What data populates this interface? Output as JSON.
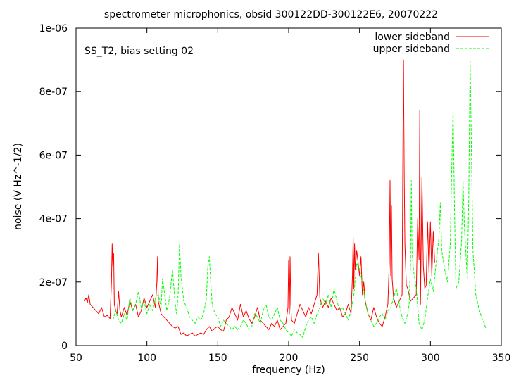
{
  "chart_data": {
    "type": "line",
    "title": "spectrometer microphonics, obsid 300122DD-300122E6, 20070222",
    "xlabel": "frequency (Hz)",
    "ylabel": "noise (V Hz^-1/2)",
    "annotation": "SS_T2, bias setting 02",
    "xlim": [
      50,
      350
    ],
    "ylim": [
      0,
      1e-06
    ],
    "x_ticks": [
      50,
      100,
      150,
      200,
      250,
      300,
      350
    ],
    "x_tick_labels": [
      "50",
      "100",
      "150",
      "200",
      "250",
      "300",
      "350"
    ],
    "y_ticks": [
      0,
      2e-07,
      4e-07,
      6e-07,
      8e-07,
      1e-06
    ],
    "y_tick_labels": [
      "0",
      "2e-07",
      "4e-07",
      "6e-07",
      "8e-07",
      "1e-06"
    ],
    "grid": false,
    "legend_position": "top-right",
    "series": [
      {
        "name": "lower sideband",
        "color": "#ff0000",
        "dash": "solid",
        "x": [
          56,
          57,
          58,
          59,
          60,
          62,
          64,
          66,
          68,
          70,
          72,
          74,
          75,
          75.5,
          76,
          76.5,
          77,
          78,
          79,
          80,
          81,
          82,
          84,
          86,
          88,
          90,
          92,
          94,
          96,
          98,
          100,
          102,
          104,
          106,
          107,
          107.5,
          108,
          110,
          112,
          114,
          116,
          118,
          120,
          122,
          124,
          126,
          128,
          130,
          132,
          134,
          136,
          138,
          140,
          142,
          144,
          146,
          148,
          150,
          152,
          154,
          156,
          158,
          160,
          162,
          164,
          166,
          168,
          170,
          172,
          174,
          176,
          178,
          180,
          182,
          184,
          186,
          188,
          190,
          192,
          194,
          196,
          198,
          199.5,
          200,
          200.5,
          201,
          201.5,
          202,
          204,
          206,
          208,
          210,
          212,
          214,
          216,
          218,
          220,
          221,
          222,
          224,
          226,
          228,
          230,
          232,
          234,
          236,
          238,
          240,
          242,
          244,
          245,
          245.5,
          246,
          246.5,
          247,
          248,
          249,
          250,
          251,
          252,
          253,
          254,
          256,
          258,
          260,
          262,
          264,
          266,
          268,
          270,
          271,
          271.5,
          272,
          272.5,
          273,
          274,
          276,
          278,
          280,
          280.5,
          281,
          281.5,
          282,
          283,
          284,
          286,
          288,
          290,
          291,
          292,
          292.5,
          293,
          294,
          295,
          296,
          297,
          298,
          299,
          300,
          301,
          302,
          303
        ],
        "y": [
          1.4e-07,
          1.5e-07,
          1.35e-07,
          1.6e-07,
          1.3e-07,
          1.2e-07,
          1.1e-07,
          1e-07,
          1.2e-07,
          9e-08,
          9.5e-08,
          8.5e-08,
          2e-07,
          3.2e-07,
          2.5e-07,
          2.9e-07,
          1.3e-07,
          1.1e-07,
          1e-07,
          1.7e-07,
          1.1e-07,
          9e-08,
          1.2e-07,
          9.5e-08,
          1.4e-07,
          1.1e-07,
          1.3e-07,
          9e-08,
          1.1e-07,
          1.5e-07,
          1.2e-07,
          1.4e-07,
          1.6e-07,
          1.2e-07,
          2e-07,
          2.8e-07,
          1.4e-07,
          1e-07,
          9e-08,
          8e-08,
          7e-08,
          6e-08,
          5.5e-08,
          6e-08,
          3.5e-08,
          4e-08,
          3e-08,
          3.5e-08,
          4e-08,
          3e-08,
          3.5e-08,
          4e-08,
          3.5e-08,
          5e-08,
          6e-08,
          4.5e-08,
          5.5e-08,
          6e-08,
          5e-08,
          4.5e-08,
          8e-08,
          9e-08,
          1.2e-07,
          1e-07,
          8e-08,
          1.3e-07,
          9e-08,
          1.1e-07,
          8.5e-08,
          7e-08,
          9e-08,
          1.2e-07,
          8e-08,
          7e-08,
          6e-08,
          5e-08,
          7e-08,
          6e-08,
          8e-08,
          5e-08,
          6e-08,
          7e-08,
          1.2e-07,
          2.7e-07,
          1e-07,
          2.8e-07,
          1.3e-07,
          8e-08,
          7e-08,
          1e-07,
          1.3e-07,
          1.1e-07,
          9e-08,
          1.2e-07,
          1e-07,
          1.3e-07,
          1.6e-07,
          2.9e-07,
          1.5e-07,
          1.2e-07,
          1.4e-07,
          1.2e-07,
          1.5e-07,
          1.3e-07,
          1.1e-07,
          1.2e-07,
          9e-08,
          1e-07,
          1.3e-07,
          1e-07,
          2.2e-07,
          3.4e-07,
          1.8e-07,
          3.2e-07,
          2.4e-07,
          3e-07,
          2.6e-07,
          2.2e-07,
          2.8e-07,
          1.6e-07,
          2e-07,
          1.4e-07,
          1e-07,
          8e-08,
          1.2e-07,
          9e-08,
          7e-08,
          6e-08,
          9e-08,
          1.3e-07,
          2.6e-07,
          5.2e-07,
          2.2e-07,
          4.4e-07,
          2.1e-07,
          1.5e-07,
          1.2e-07,
          1.4e-07,
          1.6e-07,
          5.7e-07,
          9e-07,
          5.4e-07,
          3.2e-07,
          1.9e-07,
          1.8e-07,
          1.4e-07,
          1.5e-07,
          1.6e-07,
          4e-07,
          2.7e-07,
          7.4e-07,
          1.3e-07,
          5.3e-07,
          2.5e-07,
          1.8e-07,
          1.9e-07,
          3.9e-07,
          2.3e-07,
          3.9e-07,
          2.2e-07,
          3.6e-07,
          2.6e-07
        ]
      },
      {
        "name": "upper sideband",
        "color": "#00ff00",
        "dash": "dashed",
        "x": [
          76,
          78,
          80,
          82,
          84,
          86,
          88,
          90,
          92,
          94,
          96,
          98,
          100,
          102,
          104,
          106,
          108,
          110,
          111,
          112,
          114,
          116,
          118,
          120,
          121,
          122,
          123,
          124,
          126,
          128,
          130,
          132,
          134,
          136,
          138,
          140,
          142,
          143,
          144,
          145,
          146,
          148,
          150,
          152,
          154,
          156,
          158,
          160,
          162,
          164,
          166,
          168,
          170,
          172,
          174,
          176,
          178,
          180,
          182,
          184,
          186,
          188,
          190,
          192,
          194,
          196,
          198,
          200,
          202,
          204,
          206,
          208,
          210,
          212,
          214,
          216,
          218,
          220,
          222,
          224,
          226,
          228,
          230,
          232,
          234,
          236,
          238,
          240,
          242,
          244,
          246,
          248,
          250,
          252,
          254,
          256,
          258,
          260,
          262,
          264,
          266,
          268,
          270,
          272,
          274,
          276,
          278,
          280,
          282,
          284,
          285,
          286,
          286.5,
          287,
          288,
          290,
          292,
          294,
          296,
          298,
          300,
          302,
          304,
          306,
          307,
          308,
          310,
          312,
          314,
          315,
          316,
          317,
          318,
          320,
          322,
          323,
          324,
          326,
          327,
          328,
          329,
          330,
          332,
          334,
          336,
          338,
          339
        ],
        "y": [
          8e-08,
          1.1e-07,
          8e-08,
          7e-08,
          1e-07,
          8e-08,
          1.5e-07,
          1.1e-07,
          1.3e-07,
          1.7e-07,
          1.2e-07,
          1.4e-07,
          1e-07,
          1.3e-07,
          1.1e-07,
          1.5e-07,
          1.6e-07,
          1.2e-07,
          2.1e-07,
          1.8e-07,
          1.1e-07,
          1.5e-07,
          2.4e-07,
          1.3e-07,
          1e-07,
          1.6e-07,
          3.2e-07,
          2.2e-07,
          1.4e-07,
          1.2e-07,
          9e-08,
          8e-08,
          7e-08,
          9e-08,
          8e-08,
          1e-07,
          1.5e-07,
          2.5e-07,
          2.8e-07,
          2e-07,
          1.3e-07,
          1e-07,
          9e-08,
          6e-08,
          8e-08,
          7e-08,
          6e-08,
          5e-08,
          6e-08,
          5e-08,
          6e-08,
          8e-08,
          7e-08,
          5e-08,
          6e-08,
          1e-07,
          9e-08,
          7e-08,
          1.1e-07,
          1.3e-07,
          9e-08,
          8e-08,
          1e-07,
          1.2e-07,
          8e-08,
          7e-08,
          5e-08,
          4e-08,
          3e-08,
          5e-08,
          4e-08,
          3.5e-08,
          2.5e-08,
          6e-08,
          8e-08,
          9e-08,
          7e-08,
          1e-07,
          1.2e-07,
          1.5e-07,
          1.3e-07,
          1.6e-07,
          1.2e-07,
          1.8e-07,
          1.4e-07,
          1.1e-07,
          1.2e-07,
          1e-07,
          8e-08,
          1.1e-07,
          1.6e-07,
          2.6e-07,
          2.4e-07,
          2e-07,
          1.4e-07,
          1e-07,
          8e-08,
          6e-08,
          7e-08,
          9e-08,
          1e-07,
          8e-08,
          1.1e-07,
          1.2e-07,
          1.5e-07,
          1.8e-07,
          1.3e-07,
          9e-08,
          7e-08,
          1e-07,
          1.3e-07,
          2.6e-07,
          5.2e-07,
          3e-07,
          2.4e-07,
          1.8e-07,
          7e-08,
          5e-08,
          8e-08,
          1.5e-07,
          2.1e-07,
          1.7e-07,
          2.6e-07,
          3.4e-07,
          4.5e-07,
          3e-07,
          2.4e-07,
          2e-07,
          3.2e-07,
          5.5e-07,
          7.4e-07,
          4.2e-07,
          1.8e-07,
          2e-07,
          3.3e-07,
          5.2e-07,
          3.7e-07,
          2.1e-07,
          4.5e-07,
          9e-07,
          6e-07,
          3e-07,
          1.6e-07,
          1.2e-07,
          9e-08,
          7e-08,
          5.5e-08
        ]
      }
    ]
  }
}
